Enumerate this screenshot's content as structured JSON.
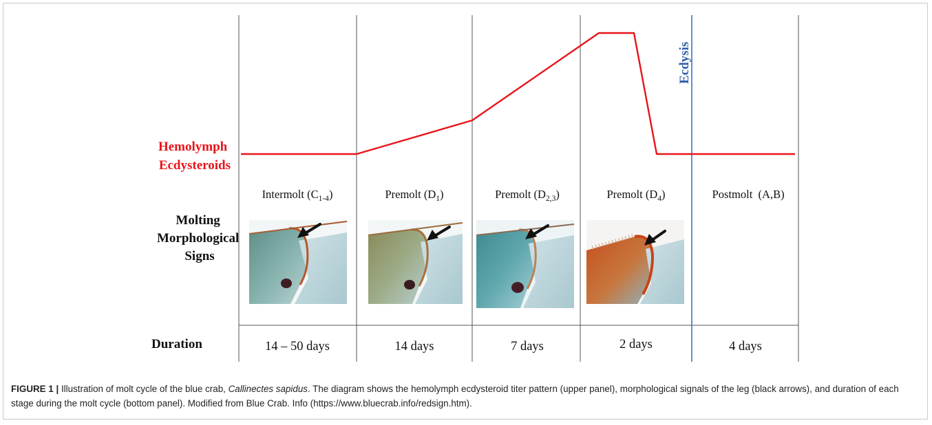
{
  "row_labels": {
    "hemolymph": [
      "Hemolymph",
      "Ecdysteroids"
    ],
    "morph": [
      "Molting",
      "Morphological",
      "Signs"
    ],
    "duration": "Duration"
  },
  "ecdysis_label": "Ecdysis",
  "stages": [
    {
      "name": "Intermolt (C",
      "sub": "1-4",
      "close": ")",
      "duration": "14 – 50 days",
      "leg": "blue-green"
    },
    {
      "name": "Premolt (D",
      "sub": "1",
      "close": ")",
      "duration": "14 days",
      "leg": "olive"
    },
    {
      "name": "Premolt (D",
      "sub": "2,3",
      "close": ")",
      "duration": "7 days",
      "leg": "teal"
    },
    {
      "name": "Premolt (D",
      "sub": "4",
      "close": ")",
      "duration": "2 days",
      "leg": "orange"
    },
    {
      "name": "Postmolt  (A,B)",
      "sub": "",
      "close": "",
      "duration": "4 days",
      "leg": "none"
    }
  ],
  "colors": {
    "hemolymph_line": "#e8141a",
    "ecdysis_line": "#3a6fc4",
    "ecdysis_text": "#2f5fa8",
    "grid": "#555555",
    "arrow": "#111111"
  },
  "caption": {
    "label": "FIGURE 1 |",
    "text_before": " Illustration of molt cycle of the blue crab, ",
    "italic": "Callinectes sapidus",
    "text_after": ". The diagram shows the hemolymph ecdysteroid titer pattern (upper panel), morphological signals of the leg (black arrows), and duration of each stage during the molt cycle (bottom panel). Modified from Blue Crab. Info (https://www.bluecrab.info/redsign.htm)."
  }
}
